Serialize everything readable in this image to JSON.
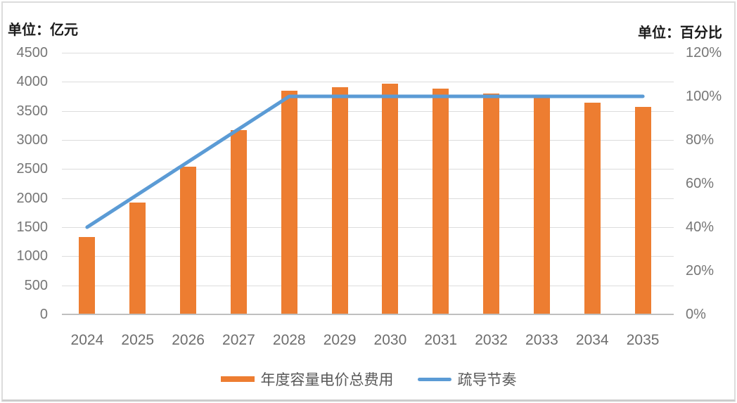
{
  "left_axis": {
    "title": "单位：亿元",
    "ticks": [
      "4500",
      "4000",
      "3500",
      "3000",
      "2500",
      "2000",
      "1500",
      "1000",
      "500",
      "0"
    ]
  },
  "right_axis": {
    "title": "单位：百分比",
    "ticks": [
      "120%",
      "100%",
      "80%",
      "60%",
      "40%",
      "20%",
      "0%"
    ]
  },
  "legend": [
    {
      "label": "年度容量电价总费用",
      "type": "bar",
      "color": "#ED7D31"
    },
    {
      "label": "疏导节奏",
      "type": "line",
      "color": "#5B9BD5"
    }
  ],
  "colors": {
    "bar": "#ED7D31",
    "line": "#5B9BD5",
    "grid": "#dcdcdc",
    "axis_line": "#bfbfbf",
    "tick_text": "#767676",
    "legend_text": "#595959",
    "frame": "#dcdcdc"
  },
  "chart_data": {
    "type": "bar",
    "subtype": "combo-bar-line-dual-axis",
    "categories": [
      "2024",
      "2025",
      "2026",
      "2027",
      "2028",
      "2029",
      "2030",
      "2031",
      "2032",
      "2033",
      "2034",
      "2035"
    ],
    "series": [
      {
        "name": "年度容量电价总费用",
        "type": "bar",
        "axis": "left",
        "color": "#ED7D31",
        "values": [
          1320,
          1910,
          2530,
          3160,
          3840,
          3900,
          3950,
          3870,
          3790,
          3730,
          3630,
          3560
        ]
      },
      {
        "name": "疏导节奏",
        "type": "line",
        "axis": "right",
        "color": "#5B9BD5",
        "values": [
          40,
          55,
          70,
          85,
          100,
          100,
          100,
          100,
          100,
          100,
          100,
          100
        ]
      }
    ],
    "left_ylabel": "单位：亿元",
    "right_ylabel": "单位：百分比",
    "left_ylim": [
      0,
      4500
    ],
    "left_step": 500,
    "right_ylim": [
      0,
      120
    ],
    "right_step": 20,
    "grid": true,
    "legend_position": "bottom"
  }
}
